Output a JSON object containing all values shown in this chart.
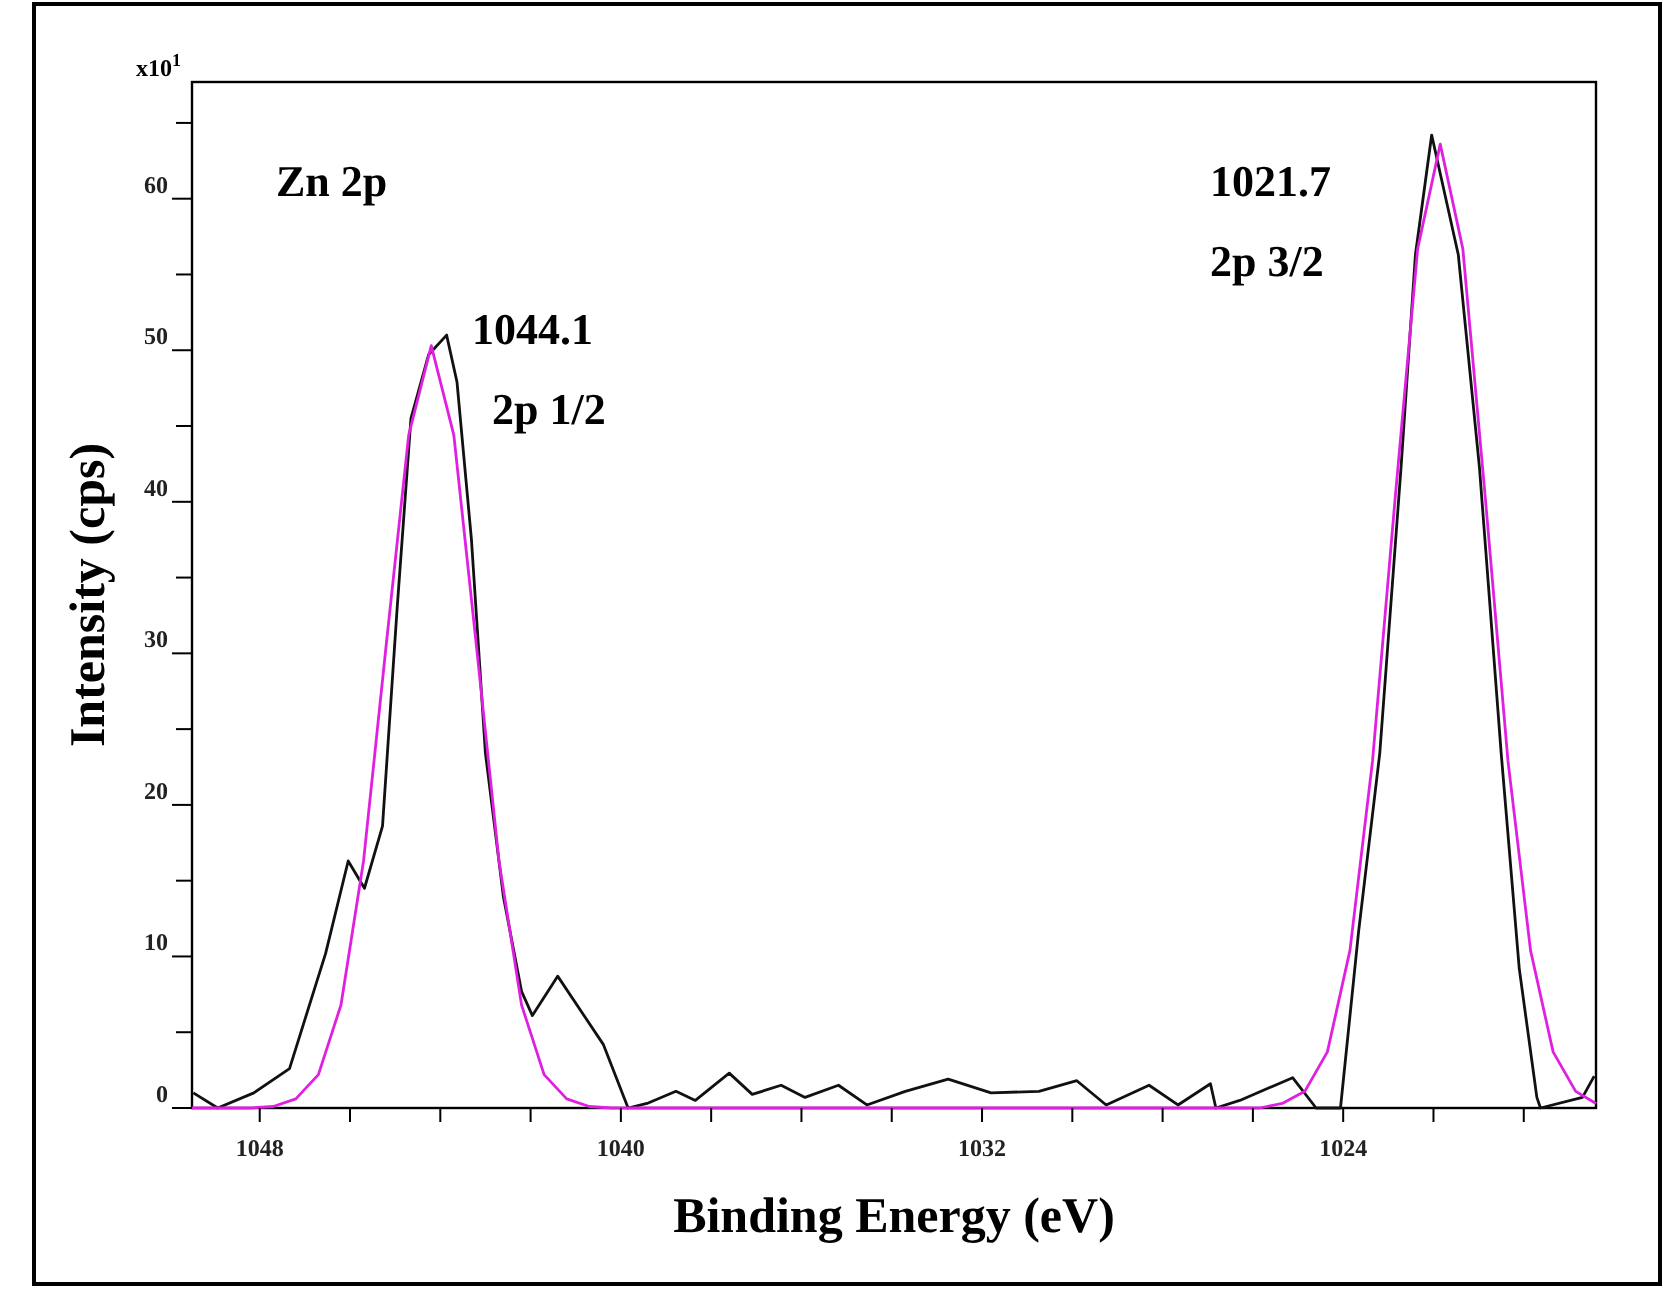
{
  "chart_data": {
    "type": "line",
    "xlabel": "Binding Energy (eV)",
    "ylabel": "Intensity (cps)",
    "xlim": [
      1049.5,
      1018.4
    ],
    "ylim": [
      0,
      67.7
    ],
    "xticks": [
      1048,
      {
        "value": 1046,
        "label": null
      },
      {
        "value": 1044,
        "label": null
      },
      {
        "value": 1042,
        "label": null
      },
      1040,
      {
        "value": 1038,
        "label": null
      },
      {
        "value": 1036,
        "label": null
      },
      {
        "value": 1034,
        "label": null
      },
      1032,
      {
        "value": 1030,
        "label": null
      },
      {
        "value": 1028,
        "label": null
      },
      {
        "value": 1026,
        "label": null
      },
      1024,
      {
        "value": 1022,
        "label": null
      },
      {
        "value": 1020,
        "label": null
      }
    ],
    "yticks": [
      0,
      {
        "value": 5,
        "label": null
      },
      10,
      {
        "value": 15,
        "label": null
      },
      20,
      {
        "value": 25,
        "label": null
      },
      30,
      {
        "value": 35,
        "label": null
      },
      40,
      {
        "value": 45,
        "label": null
      },
      50,
      {
        "value": 55,
        "label": null
      },
      60,
      {
        "value": 65,
        "label": null
      }
    ],
    "grid": false,
    "marker": "none",
    "line_style": "solid",
    "annotations": [
      "x10$^{1}$",
      "Zn 2p",
      "1044.1",
      "2p 1/2",
      "1021.7",
      "2p 3/2"
    ],
    "series": [
      {
        "color": "#111111",
        "x": [
          1049.47,
          1048.93,
          1048.13,
          1047.34,
          1046.54,
          1046.04,
          1045.68,
          1045.28,
          1044.96,
          1044.65,
          1044.26,
          1043.86,
          1043.63,
          1043.31,
          1043.0,
          1042.6,
          1042.2,
          1041.96,
          1041.4,
          1040.39,
          1039.84,
          1039.42,
          1038.78,
          1038.35,
          1037.6,
          1037.09,
          1036.45,
          1035.92,
          1035.18,
          1034.55,
          1033.7,
          1032.75,
          1031.8,
          1030.74,
          1029.9,
          1029.25,
          1028.3,
          1027.66,
          1026.94,
          1026.82,
          1026.29,
          1025.12,
          1024.6,
          1024.06,
          1023.66,
          1023.19,
          1022.72,
          1022.4,
          1022.04,
          1021.45,
          1020.98,
          1020.5,
          1020.1,
          1019.71,
          1019.63,
          1018.7,
          1018.44
        ],
        "values": [
          1.0,
          0,
          1.0,
          2.6,
          10.2,
          16.3,
          14.5,
          18.6,
          32.8,
          45.5,
          49.7,
          51.0,
          47.9,
          37.5,
          23.4,
          13.9,
          7.7,
          6.1,
          8.7,
          4.2,
          0,
          0.3,
          1.1,
          0.5,
          2.3,
          0.9,
          1.5,
          0.7,
          1.5,
          0.2,
          1.1,
          1.9,
          1.0,
          1.1,
          1.8,
          0.2,
          1.5,
          0.2,
          1.6,
          0,
          0.5,
          2.0,
          0,
          0,
          11.6,
          23.4,
          42.2,
          56.3,
          64.2,
          56.3,
          42.2,
          23.4,
          9.2,
          0.7,
          0,
          0.7,
          2.1
        ]
      },
      {
        "color": "#e020e0",
        "x": [
          1049.5,
          1048.2,
          1047.7,
          1047.2,
          1046.7,
          1046.2,
          1045.7,
          1045.2,
          1044.7,
          1044.2,
          1043.7,
          1043.2,
          1042.7,
          1042.2,
          1041.7,
          1041.2,
          1040.7,
          1040.2,
          1025.85,
          1025.35,
          1024.85,
          1024.35,
          1023.85,
          1023.35,
          1022.85,
          1022.35,
          1021.85,
          1021.35,
          1020.85,
          1020.35,
          1019.85,
          1019.35,
          1018.85,
          1018.4
        ],
        "values": [
          0,
          0,
          0.1,
          0.6,
          2.2,
          6.8,
          16.3,
          30.5,
          44.4,
          50.3,
          44.4,
          30.5,
          16.3,
          6.8,
          2.2,
          0.6,
          0.1,
          0,
          0,
          0.3,
          1.1,
          3.7,
          10.4,
          22.9,
          40.2,
          56.7,
          63.6,
          56.7,
          40.2,
          22.9,
          10.4,
          3.7,
          1.1,
          0.3
        ]
      }
    ]
  }
}
